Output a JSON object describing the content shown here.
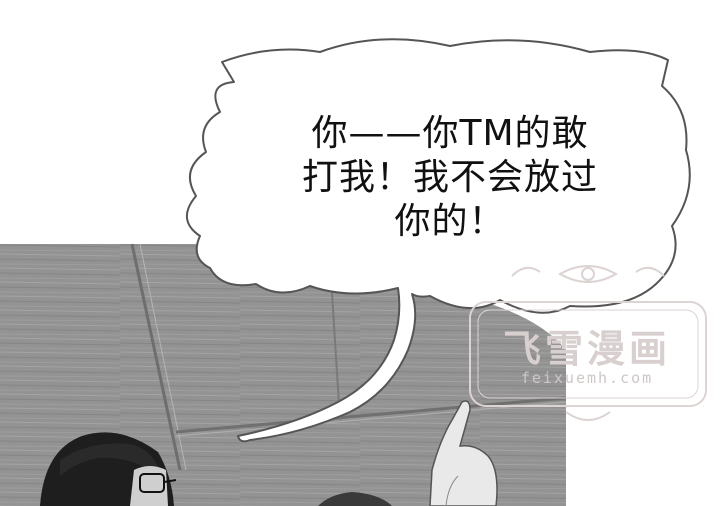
{
  "speech_bubble": {
    "lines": [
      "你——你TM的敢",
      "打我！我不会放过",
      "你的！"
    ]
  },
  "watermark": {
    "title": "飞雪漫画",
    "url": "feixuemh.com"
  },
  "colors": {
    "floor": "#8f8f8f",
    "bubble_fill": "#ffffff",
    "bubble_stroke": "#555555",
    "watermark": "#d8cfcf"
  }
}
